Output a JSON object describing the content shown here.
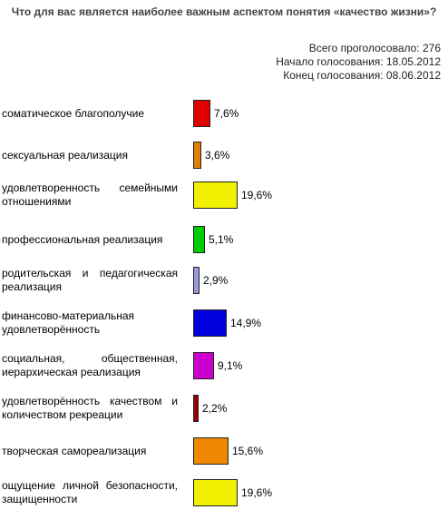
{
  "poll": {
    "title": "Что для вас является наиболее важным аспектом понятия «качество жизни»?",
    "total_votes": "Всего проголосовало: 276",
    "start_date": "Начало голосования: 18.05.2012",
    "end_date": "Конец голосования: 08.06.2012"
  },
  "chart_data": {
    "type": "bar",
    "orientation": "horizontal",
    "title": "Что для вас является наиболее важным аспектом понятия «качество жизни»?",
    "categories": [
      "соматическое благополучие",
      "сексуальная реализация",
      "удовлетворенность семейными отношениями",
      "профессиональная реализация",
      "родительская и педагогическая реализация",
      "финансово-материальная удовлетворённость",
      "социальная, общественная, иерархическая реализация",
      "удовлетворённость качеством и количеством рекреации",
      "творческая самореализация",
      "ощущение личной безопасности, защищенности"
    ],
    "values": [
      7.6,
      3.6,
      19.6,
      5.1,
      2.9,
      14.9,
      9.1,
      2.2,
      15.6,
      19.6
    ],
    "value_labels": [
      "7,6%",
      "3,6%",
      "19,6%",
      "5,1%",
      "2,9%",
      "14,9%",
      "9,1%",
      "2,2%",
      "15,6%",
      "19,6%"
    ],
    "colors": [
      "#e00000",
      "#e08000",
      "#f0f000",
      "#00cc00",
      "#9999dd",
      "#0000dd",
      "#cc00cc",
      "#990000",
      "#ee8800",
      "#f0f000"
    ],
    "unit": "%",
    "grid": false,
    "legend": "none"
  }
}
